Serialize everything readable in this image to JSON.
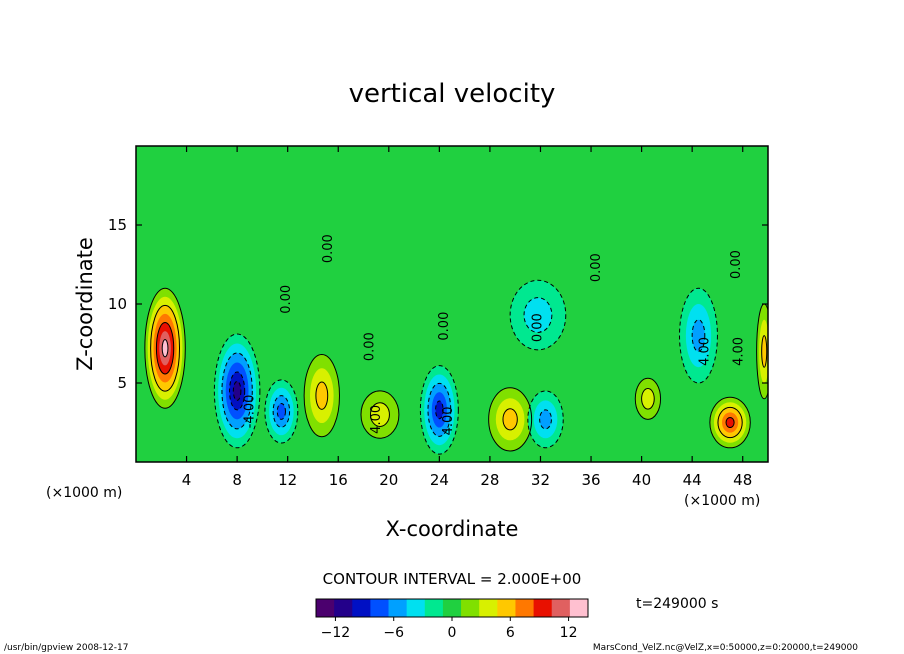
{
  "chart_data": {
    "type": "heatmap",
    "title": "vertical velocity",
    "xlabel": "X-coordinate",
    "ylabel": "Z-coordinate",
    "x_unit": "(×1000 m)",
    "xlim": [
      0,
      50
    ],
    "ylim": [
      0,
      20
    ],
    "x_ticks": [
      4,
      8,
      12,
      16,
      20,
      24,
      28,
      32,
      36,
      40,
      44,
      48
    ],
    "y_ticks": [
      5,
      10,
      15
    ],
    "contour_interval_text": "CONTOUR INTERVAL = 2.000E+00",
    "contour_labels": [
      {
        "text": "0.00",
        "x": 15.5,
        "z": 13.5,
        "rot": -90
      },
      {
        "text": "0.00",
        "x": 12.2,
        "z": 10.3,
        "rot": -90
      },
      {
        "text": "0.00",
        "x": 18.8,
        "z": 7.3,
        "rot": -90
      },
      {
        "text": "0.00",
        "x": 24.7,
        "z": 8.6,
        "rot": -90
      },
      {
        "text": "0.00",
        "x": 36.7,
        "z": 12.3,
        "rot": -90
      },
      {
        "text": "0.00",
        "x": 32.1,
        "z": 8.5,
        "rot": -90
      },
      {
        "text": "0.00",
        "x": 47.8,
        "z": 12.5,
        "rot": -90
      },
      {
        "text": "4.00",
        "x": 48.0,
        "z": 7.0,
        "rot": -90
      },
      {
        "text": "4.00",
        "x": 45.3,
        "z": 7.0,
        "rot": -90
      },
      {
        "text": "4.00",
        "x": 19.3,
        "z": 2.7,
        "rot": -90
      },
      {
        "text": "4.00",
        "x": 25.0,
        "z": 2.6,
        "rot": -90
      },
      {
        "text": "-4.00",
        "x": 9.3,
        "z": 3.2,
        "rot": -90
      }
    ],
    "cells": [
      {
        "x": 2.3,
        "z": 7.2,
        "value": 14,
        "rx": 1.6,
        "rz": 3.8
      },
      {
        "x": 8.0,
        "z": 4.5,
        "value": -12,
        "rx": 1.8,
        "rz": 3.6
      },
      {
        "x": 11.5,
        "z": 3.2,
        "value": -8,
        "rx": 1.3,
        "rz": 2.0
      },
      {
        "x": 14.7,
        "z": 4.2,
        "value": 6,
        "rx": 1.4,
        "rz": 2.6
      },
      {
        "x": 19.3,
        "z": 3.0,
        "value": 4,
        "rx": 1.5,
        "rz": 1.5
      },
      {
        "x": 24.0,
        "z": 3.3,
        "value": -10,
        "rx": 1.5,
        "rz": 2.8
      },
      {
        "x": 29.6,
        "z": 2.7,
        "value": 6,
        "rx": 1.7,
        "rz": 2.0
      },
      {
        "x": 32.4,
        "z": 2.7,
        "value": -6,
        "rx": 1.4,
        "rz": 1.8
      },
      {
        "x": 31.8,
        "z": 9.3,
        "value": -4,
        "rx": 2.2,
        "rz": 2.2
      },
      {
        "x": 40.5,
        "z": 4.0,
        "value": 4,
        "rx": 1.0,
        "rz": 1.3
      },
      {
        "x": 44.5,
        "z": 8.0,
        "value": -6,
        "rx": 1.5,
        "rz": 3.0
      },
      {
        "x": 47.0,
        "z": 2.5,
        "value": 10,
        "rx": 1.6,
        "rz": 1.6
      },
      {
        "x": 49.7,
        "z": 7.0,
        "value": 6,
        "rx": 0.6,
        "rz": 3.0
      }
    ],
    "colorbar": {
      "min": -14,
      "max": 14,
      "ticks": [
        -12,
        -6,
        0,
        6,
        12
      ],
      "colors": [
        "#4b006e",
        "#23008a",
        "#0010c4",
        "#0050ff",
        "#00a0ff",
        "#00e0f0",
        "#00e890",
        "#20d040",
        "#80e000",
        "#d8f000",
        "#ffc800",
        "#ff7800",
        "#e81000",
        "#e06060",
        "#ffc0d0"
      ]
    },
    "time_label": "t=249000 s"
  },
  "footer": {
    "left": "/usr/bin/gpview  2008-12-17",
    "right": "MarsCond_VelZ.nc@VelZ,x=0:50000,z=0:20000,t=249000"
  }
}
